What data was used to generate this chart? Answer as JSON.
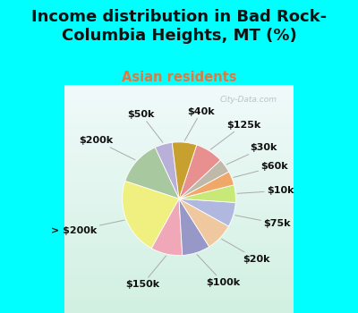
{
  "title": "Income distribution in Bad Rock-\nColumbia Heights, MT (%)",
  "subtitle": "Asian residents",
  "background_color": "#00FFFF",
  "watermark": "City-Data.com",
  "labels": [
    "$50k",
    "$200k",
    "> $200k",
    "$150k",
    "$100k",
    "$20k",
    "$75k",
    "$10k",
    "$60k",
    "$30k",
    "$125k",
    "$40k"
  ],
  "values": [
    5,
    13,
    22,
    9,
    8,
    8,
    7,
    5,
    4,
    4,
    8,
    7
  ],
  "colors": [
    "#b8b0d8",
    "#a8c8a0",
    "#f0f080",
    "#f0a8b8",
    "#9898c8",
    "#f0c8a0",
    "#b0b8e0",
    "#c8e878",
    "#f0a868",
    "#c0b8a8",
    "#e89090",
    "#c8a030"
  ],
  "label_fontsize": 8,
  "title_fontsize": 13,
  "subtitle_fontsize": 10.5,
  "subtitle_color": "#e07840",
  "title_color": "#111111",
  "chart_bg_color": "#d8f0e4",
  "chart_bg_top": "#c8e8e0",
  "startangle": 97
}
